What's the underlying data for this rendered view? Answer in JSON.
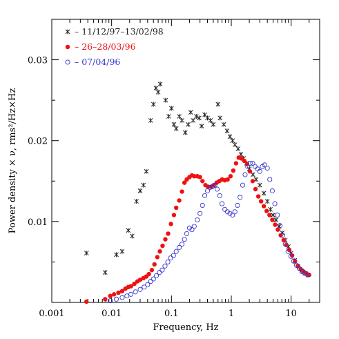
{
  "chart_data": {
    "type": "scatter",
    "xlabel": "Frequency, Hz",
    "ylabel": "Power density × ν,  rms²/Hz×Hz",
    "xscale": "log",
    "xlim": [
      0.001,
      30
    ],
    "ylim": [
      0,
      0.035
    ],
    "xticks": [
      0.001,
      0.01,
      0.1,
      1,
      10
    ],
    "xtick_labels": [
      "0.001",
      "0.01",
      "0.1",
      "1",
      "10"
    ],
    "yticks": [
      0.01,
      0.02,
      0.03
    ],
    "ytick_labels": [
      "0.01",
      "0.02",
      "0.03"
    ],
    "legend_position": "top-left",
    "series": [
      {
        "name": "11/12/97–13/02/98",
        "legend_label": "– 11/12/97–13/02/98",
        "marker": "cross",
        "color": "#222222",
        "points": [
          [
            0.0038,
            0.0061
          ],
          [
            0.0078,
            0.0037
          ],
          [
            0.012,
            0.0059
          ],
          [
            0.015,
            0.0063
          ],
          [
            0.019,
            0.0089
          ],
          [
            0.022,
            0.0082
          ],
          [
            0.026,
            0.0125
          ],
          [
            0.03,
            0.0138
          ],
          [
            0.034,
            0.0145
          ],
          [
            0.038,
            0.0162
          ],
          [
            0.045,
            0.0225
          ],
          [
            0.05,
            0.0245
          ],
          [
            0.055,
            0.0265
          ],
          [
            0.06,
            0.026
          ],
          [
            0.065,
            0.027
          ],
          [
            0.08,
            0.025
          ],
          [
            0.09,
            0.023
          ],
          [
            0.1,
            0.024
          ],
          [
            0.11,
            0.022
          ],
          [
            0.12,
            0.0215
          ],
          [
            0.135,
            0.023
          ],
          [
            0.15,
            0.0225
          ],
          [
            0.17,
            0.021
          ],
          [
            0.19,
            0.022
          ],
          [
            0.21,
            0.0235
          ],
          [
            0.23,
            0.0225
          ],
          [
            0.26,
            0.023
          ],
          [
            0.29,
            0.0228
          ],
          [
            0.32,
            0.0218
          ],
          [
            0.36,
            0.0232
          ],
          [
            0.4,
            0.0228
          ],
          [
            0.45,
            0.0225
          ],
          [
            0.5,
            0.022
          ],
          [
            0.6,
            0.0245
          ],
          [
            0.65,
            0.0228
          ],
          [
            0.75,
            0.022
          ],
          [
            0.85,
            0.0212
          ],
          [
            0.95,
            0.0205
          ],
          [
            1.05,
            0.02
          ],
          [
            1.15,
            0.0195
          ],
          [
            1.3,
            0.019
          ],
          [
            1.45,
            0.0183
          ],
          [
            1.6,
            0.0178
          ],
          [
            1.8,
            0.0172
          ],
          [
            2.0,
            0.0165
          ],
          [
            2.3,
            0.0158
          ],
          [
            2.6,
            0.0152
          ],
          [
            3.0,
            0.0145
          ],
          [
            3.5,
            0.0135
          ],
          [
            4.0,
            0.0125
          ],
          [
            4.5,
            0.0115
          ],
          [
            5.0,
            0.0108
          ],
          [
            5.6,
            0.0102
          ],
          [
            6.3,
            0.0094
          ],
          [
            7.1,
            0.0086
          ],
          [
            8.0,
            0.0077
          ],
          [
            9.0,
            0.0069
          ],
          [
            10,
            0.0061
          ],
          [
            11.5,
            0.0052
          ],
          [
            13,
            0.0045
          ],
          [
            15,
            0.0039
          ],
          [
            17,
            0.0036
          ],
          [
            19,
            0.0034
          ]
        ]
      },
      {
        "name": "26–28/03/96",
        "legend_label": "– 26–28/03/96",
        "marker": "filled-circle",
        "color": "#ee1111",
        "points": [
          [
            0.0038,
            0.0001
          ],
          [
            0.0078,
            0.0004
          ],
          [
            0.0095,
            0.0008
          ],
          [
            0.011,
            0.001
          ],
          [
            0.013,
            0.0012
          ],
          [
            0.015,
            0.0014
          ],
          [
            0.017,
            0.0017
          ],
          [
            0.019,
            0.0019
          ],
          [
            0.021,
            0.002
          ],
          [
            0.024,
            0.0023
          ],
          [
            0.027,
            0.0026
          ],
          [
            0.03,
            0.0028
          ],
          [
            0.034,
            0.003
          ],
          [
            0.038,
            0.0032
          ],
          [
            0.042,
            0.0035
          ],
          [
            0.047,
            0.004
          ],
          [
            0.052,
            0.0047
          ],
          [
            0.058,
            0.0056
          ],
          [
            0.064,
            0.0063
          ],
          [
            0.071,
            0.007
          ],
          [
            0.079,
            0.0078
          ],
          [
            0.088,
            0.0085
          ],
          [
            0.098,
            0.0097
          ],
          [
            0.11,
            0.0108
          ],
          [
            0.12,
            0.0117
          ],
          [
            0.135,
            0.0126
          ],
          [
            0.15,
            0.0137
          ],
          [
            0.165,
            0.0148
          ],
          [
            0.18,
            0.0152
          ],
          [
            0.2,
            0.0155
          ],
          [
            0.22,
            0.0157
          ],
          [
            0.24,
            0.0156
          ],
          [
            0.27,
            0.0156
          ],
          [
            0.3,
            0.0155
          ],
          [
            0.33,
            0.015
          ],
          [
            0.37,
            0.0145
          ],
          [
            0.41,
            0.0143
          ],
          [
            0.46,
            0.0143
          ],
          [
            0.51,
            0.0145
          ],
          [
            0.57,
            0.0148
          ],
          [
            0.63,
            0.015
          ],
          [
            0.7,
            0.0152
          ],
          [
            0.78,
            0.0151
          ],
          [
            0.87,
            0.0152
          ],
          [
            0.97,
            0.0156
          ],
          [
            1.08,
            0.0163
          ],
          [
            1.2,
            0.0172
          ],
          [
            1.33,
            0.0179
          ],
          [
            1.48,
            0.0178
          ],
          [
            1.65,
            0.0175
          ],
          [
            1.84,
            0.0171
          ],
          [
            2.05,
            0.0162
          ],
          [
            2.28,
            0.015
          ],
          [
            2.54,
            0.014
          ],
          [
            2.83,
            0.0131
          ],
          [
            3.15,
            0.0125
          ],
          [
            3.5,
            0.0119
          ],
          [
            3.9,
            0.0113
          ],
          [
            4.35,
            0.0108
          ],
          [
            4.85,
            0.0102
          ],
          [
            5.4,
            0.0096
          ],
          [
            6.0,
            0.009
          ],
          [
            6.7,
            0.0083
          ],
          [
            7.5,
            0.0077
          ],
          [
            8.3,
            0.0071
          ],
          [
            9.3,
            0.0065
          ],
          [
            10.4,
            0.0058
          ],
          [
            11.6,
            0.0051
          ],
          [
            13,
            0.0045
          ],
          [
            14.5,
            0.0041
          ],
          [
            16.2,
            0.0038
          ],
          [
            18,
            0.0036
          ],
          [
            20,
            0.0034
          ]
        ]
      },
      {
        "name": "07/04/96",
        "legend_label": "– 07/04/96",
        "marker": "open-circle",
        "color": "#3333cc",
        "points": [
          [
            0.0095,
            0.0002
          ],
          [
            0.012,
            0.0004
          ],
          [
            0.015,
            0.0006
          ],
          [
            0.018,
            0.0008
          ],
          [
            0.021,
            0.001
          ],
          [
            0.025,
            0.0013
          ],
          [
            0.03,
            0.0016
          ],
          [
            0.035,
            0.0019
          ],
          [
            0.04,
            0.0022
          ],
          [
            0.045,
            0.0026
          ],
          [
            0.05,
            0.0029
          ],
          [
            0.056,
            0.0033
          ],
          [
            0.063,
            0.0037
          ],
          [
            0.07,
            0.004
          ],
          [
            0.078,
            0.0045
          ],
          [
            0.087,
            0.005
          ],
          [
            0.097,
            0.0055
          ],
          [
            0.108,
            0.0058
          ],
          [
            0.12,
            0.0063
          ],
          [
            0.135,
            0.0068
          ],
          [
            0.15,
            0.0072
          ],
          [
            0.165,
            0.0078
          ],
          [
            0.18,
            0.0085
          ],
          [
            0.2,
            0.0092
          ],
          [
            0.22,
            0.009
          ],
          [
            0.24,
            0.0094
          ],
          [
            0.27,
            0.0102
          ],
          [
            0.3,
            0.011
          ],
          [
            0.33,
            0.012
          ],
          [
            0.36,
            0.0132
          ],
          [
            0.4,
            0.0138
          ],
          [
            0.44,
            0.0142
          ],
          [
            0.48,
            0.0143
          ],
          [
            0.53,
            0.0145
          ],
          [
            0.58,
            0.014
          ],
          [
            0.64,
            0.0132
          ],
          [
            0.7,
            0.0122
          ],
          [
            0.78,
            0.0115
          ],
          [
            0.86,
            0.0112
          ],
          [
            0.95,
            0.011
          ],
          [
            1.05,
            0.0108
          ],
          [
            1.15,
            0.0112
          ],
          [
            1.27,
            0.012
          ],
          [
            1.4,
            0.013
          ],
          [
            1.55,
            0.0145
          ],
          [
            1.7,
            0.0158
          ],
          [
            1.88,
            0.0168
          ],
          [
            2.07,
            0.0172
          ],
          [
            2.28,
            0.0172
          ],
          [
            2.5,
            0.0168
          ],
          [
            2.75,
            0.0165
          ],
          [
            3.0,
            0.0162
          ],
          [
            3.3,
            0.0168
          ],
          [
            3.6,
            0.017
          ],
          [
            4.0,
            0.0166
          ],
          [
            4.4,
            0.0152
          ],
          [
            4.85,
            0.0138
          ],
          [
            5.35,
            0.0122
          ],
          [
            5.9,
            0.0108
          ],
          [
            6.5,
            0.0095
          ],
          [
            7.2,
            0.0083
          ],
          [
            8.0,
            0.0072
          ],
          [
            8.9,
            0.0063
          ],
          [
            9.9,
            0.0057
          ],
          [
            11,
            0.0051
          ],
          [
            12.3,
            0.0046
          ],
          [
            13.7,
            0.0042
          ],
          [
            15.3,
            0.0038
          ],
          [
            17,
            0.0036
          ],
          [
            19,
            0.0034
          ]
        ]
      }
    ]
  }
}
